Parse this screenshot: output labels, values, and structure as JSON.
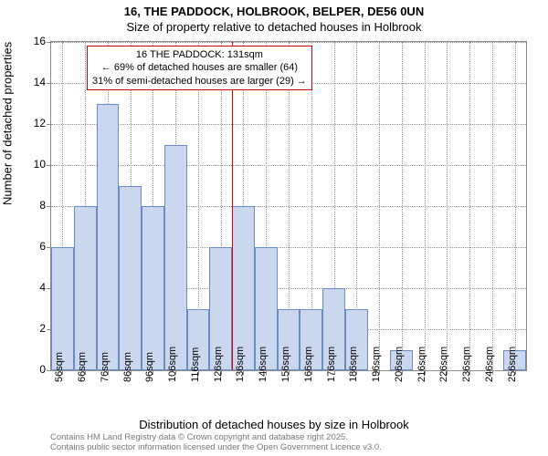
{
  "title_main": "16, THE PADDOCK, HOLBROOK, BELPER, DE56 0UN",
  "title_sub": "Size of property relative to detached houses in Holbrook",
  "ylabel": "Number of detached properties",
  "xlabel": "Distribution of detached houses by size in Holbrook",
  "footer_line1": "Contains HM Land Registry data © Crown copyright and database right 2025.",
  "footer_line2": "Contains public sector information licensed under the Open Government Licence v3.0.",
  "annotation": {
    "line1": "16 THE PADDOCK: 131sqm",
    "line2": "← 69% of detached houses are smaller (64)",
    "line3": "31% of semi-detached houses are larger (29) →"
  },
  "chart": {
    "type": "histogram",
    "bar_fill": "#cad7ee",
    "bar_stroke": "#6a8cc4",
    "grid_color": "#999999",
    "ref_line_color": "#dd0000",
    "ref_line_x": 131,
    "ylim": [
      0,
      16
    ],
    "yticks": [
      0,
      2,
      4,
      6,
      8,
      10,
      12,
      14,
      16
    ],
    "x_start": 51,
    "x_end": 261,
    "x_tick_labels": [
      "56sqm",
      "66sqm",
      "76sqm",
      "86sqm",
      "96sqm",
      "106sqm",
      "116sqm",
      "126sqm",
      "136sqm",
      "146sqm",
      "156sqm",
      "166sqm",
      "176sqm",
      "186sqm",
      "196sqm",
      "206sqm",
      "216sqm",
      "226sqm",
      "236sqm",
      "246sqm",
      "256sqm"
    ],
    "x_tick_positions": [
      56,
      66,
      76,
      86,
      96,
      106,
      116,
      126,
      136,
      146,
      156,
      166,
      176,
      186,
      196,
      206,
      216,
      226,
      236,
      246,
      256
    ],
    "bin_width": 10,
    "bins": [
      {
        "x": 51,
        "count": 6
      },
      {
        "x": 61,
        "count": 8
      },
      {
        "x": 71,
        "count": 13
      },
      {
        "x": 81,
        "count": 9
      },
      {
        "x": 91,
        "count": 8
      },
      {
        "x": 101,
        "count": 11
      },
      {
        "x": 111,
        "count": 3
      },
      {
        "x": 121,
        "count": 6
      },
      {
        "x": 131,
        "count": 8
      },
      {
        "x": 141,
        "count": 6
      },
      {
        "x": 151,
        "count": 3
      },
      {
        "x": 161,
        "count": 3
      },
      {
        "x": 171,
        "count": 4
      },
      {
        "x": 181,
        "count": 3
      },
      {
        "x": 191,
        "count": 0
      },
      {
        "x": 201,
        "count": 1
      },
      {
        "x": 211,
        "count": 0
      },
      {
        "x": 221,
        "count": 0
      },
      {
        "x": 231,
        "count": 0
      },
      {
        "x": 241,
        "count": 0
      },
      {
        "x": 251,
        "count": 1
      }
    ]
  }
}
